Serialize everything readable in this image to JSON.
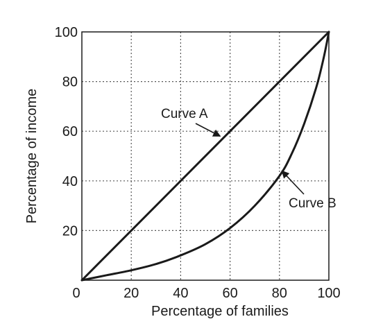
{
  "chart_data": {
    "type": "line",
    "title": "",
    "xlabel": "Percentage of families",
    "ylabel": "Percentage of income",
    "xlim": [
      0,
      100
    ],
    "ylim": [
      0,
      100
    ],
    "x_ticks": [
      "0",
      "20",
      "40",
      "60",
      "80",
      "100"
    ],
    "y_ticks": [
      "20",
      "40",
      "60",
      "80",
      "100"
    ],
    "grid": true,
    "grid_style": "dotted",
    "colors": {
      "line": "#1a1a1a",
      "grid": "#555555",
      "text": "#1a1a1a"
    },
    "series": [
      {
        "name": "Curve A",
        "x": [
          0,
          20,
          40,
          60,
          80,
          100
        ],
        "y": [
          0,
          20,
          40,
          60,
          80,
          100
        ]
      },
      {
        "name": "Curve B",
        "x": [
          0,
          10,
          20,
          30,
          40,
          50,
          60,
          70,
          80,
          85,
          90,
          95,
          98,
          100
        ],
        "y": [
          0,
          2,
          4,
          6.5,
          10,
          14.5,
          21,
          30,
          42,
          51,
          63,
          78,
          90,
          100
        ]
      }
    ],
    "annotations": [
      {
        "text": "Curve A",
        "target_series": 0,
        "point": [
          56,
          58
        ]
      },
      {
        "text": "Curve B",
        "target_series": 1,
        "point": [
          81,
          44
        ]
      }
    ]
  }
}
